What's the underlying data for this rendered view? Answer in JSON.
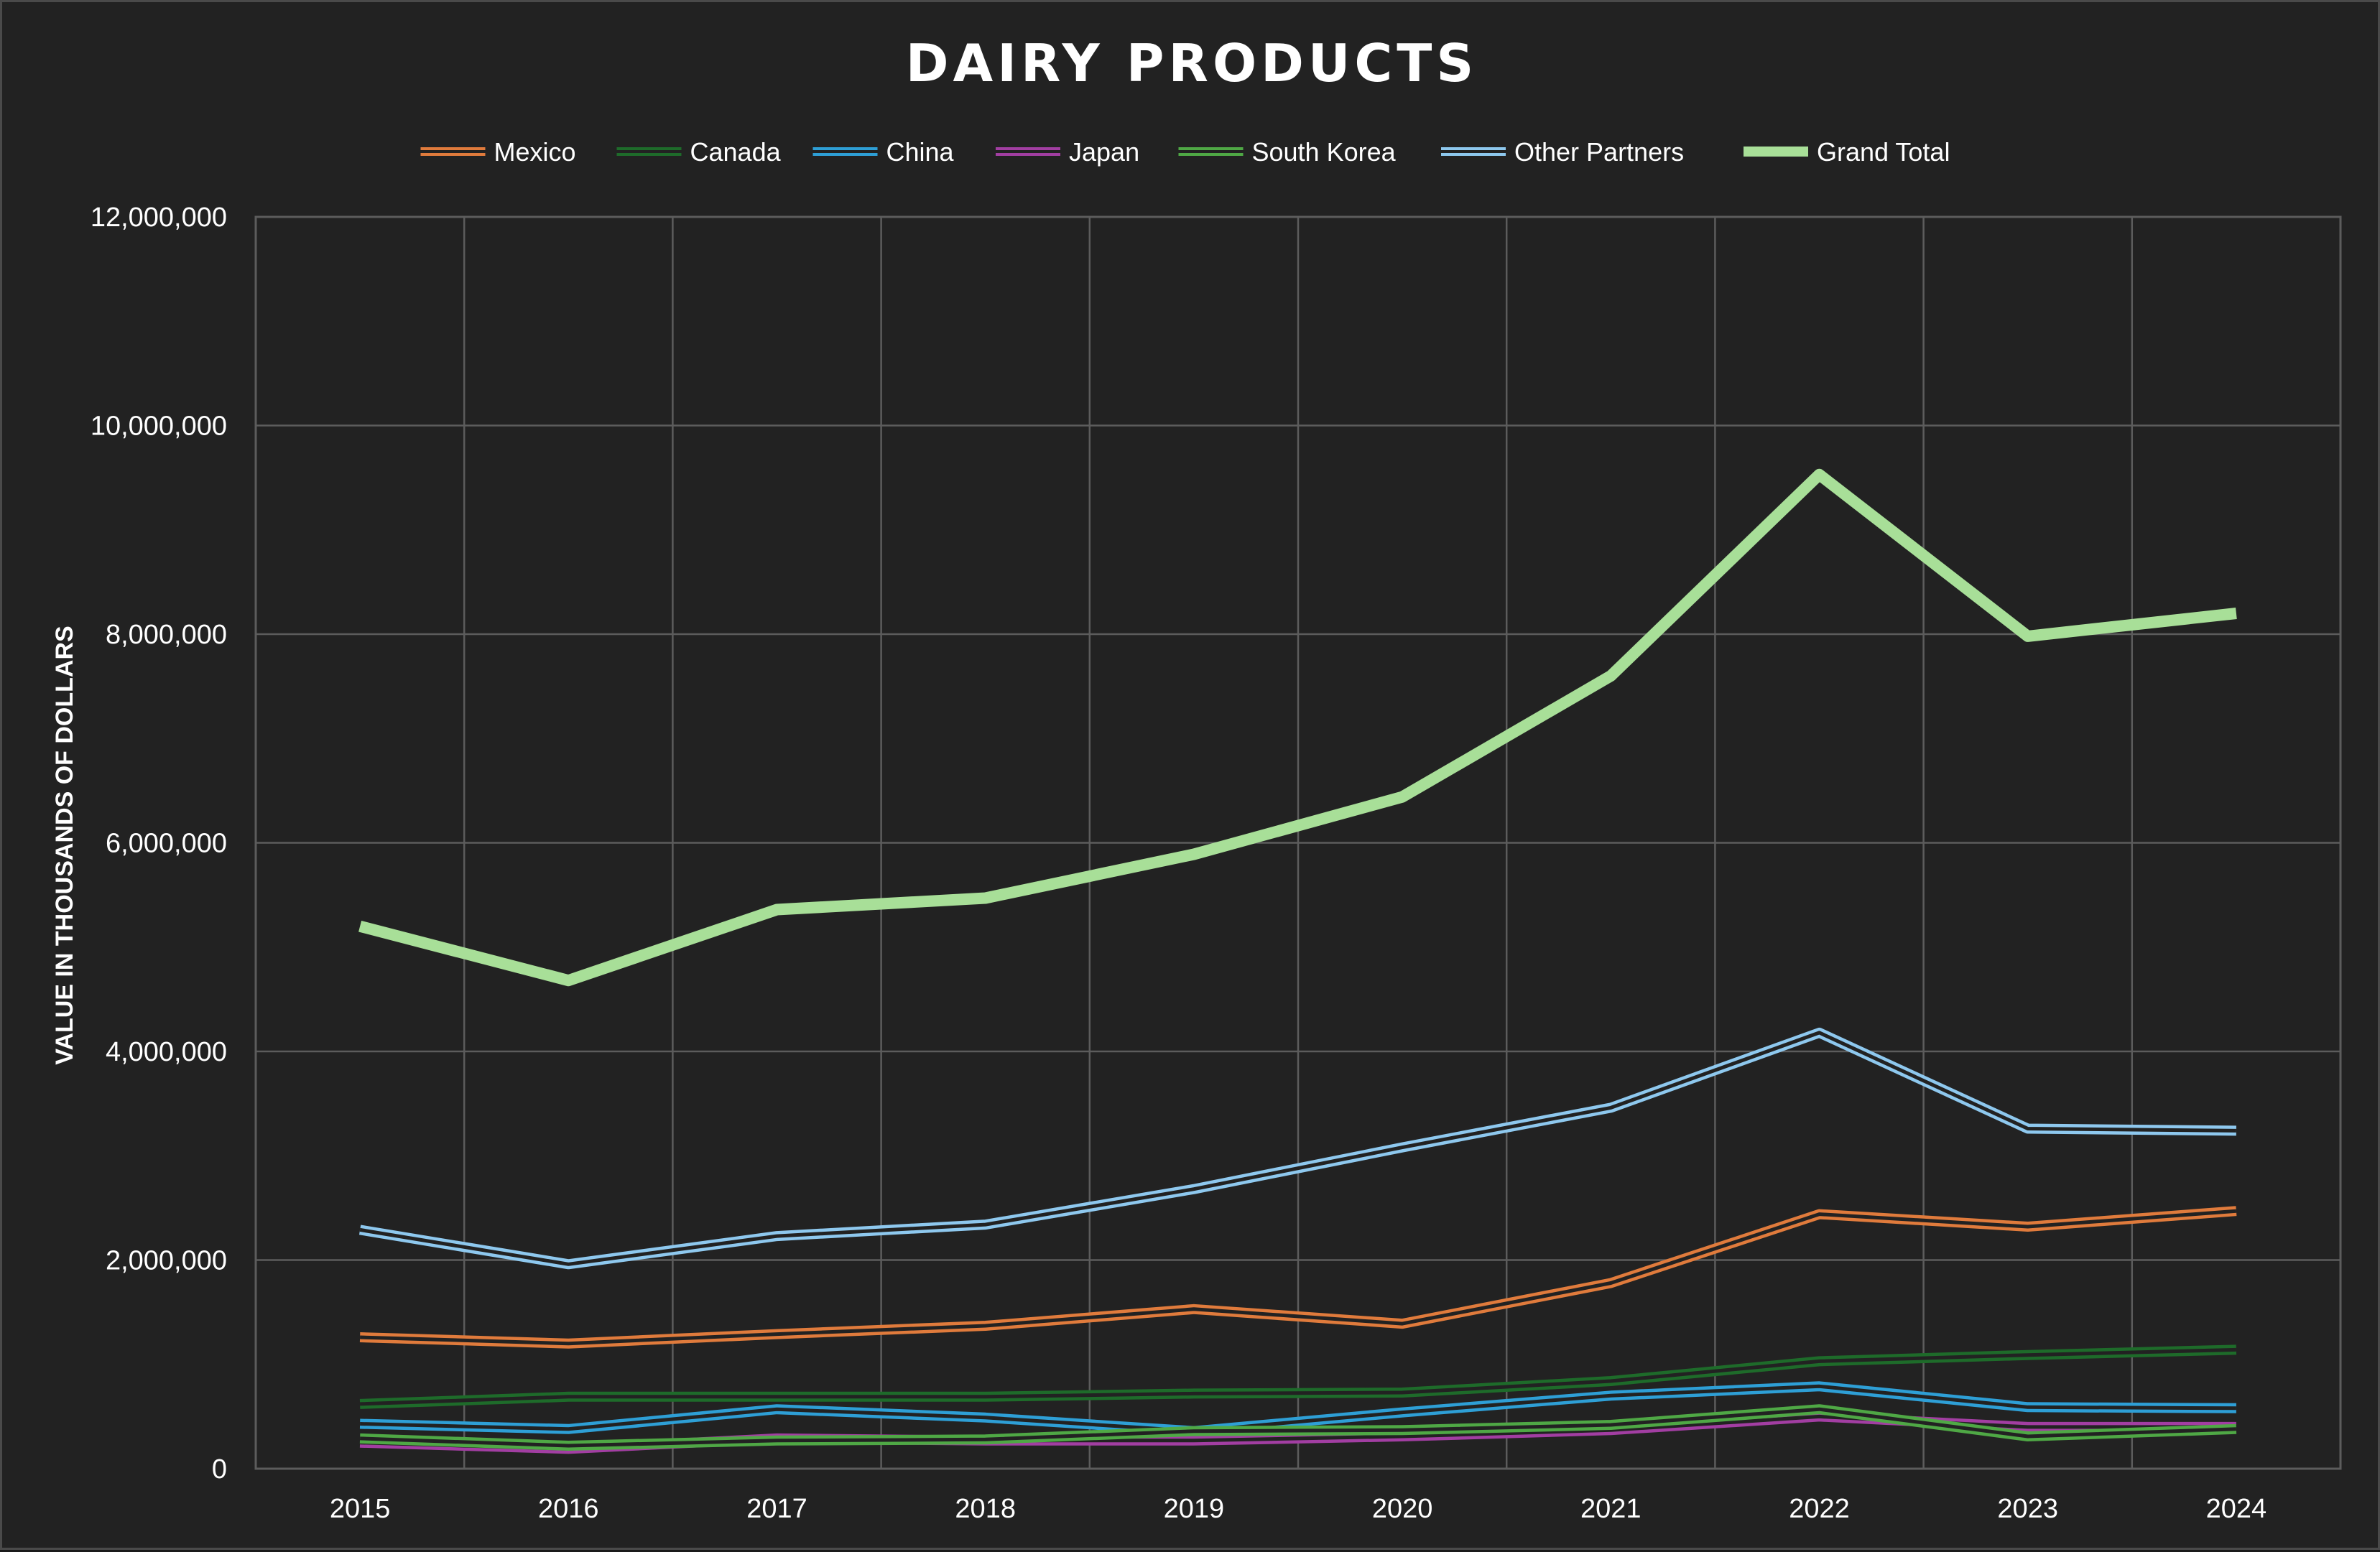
{
  "chart_data": {
    "type": "line",
    "title": "DAIRY PRODUCTS",
    "xlabel": "",
    "ylabel": "VALUE IN THOUSANDS OF DOLLARS",
    "x": [
      "2015",
      "2016",
      "2017",
      "2018",
      "2019",
      "2020",
      "2021",
      "2022",
      "2023",
      "2024"
    ],
    "ylim": [
      0,
      12000000
    ],
    "yticks": [
      0,
      2000000,
      4000000,
      6000000,
      8000000,
      10000000,
      12000000
    ],
    "ytick_labels": [
      "0",
      "2,000,000",
      "4,000,000",
      "6,000,000",
      "8,000,000",
      "10,000,000",
      "12,000,000"
    ],
    "grid": true,
    "legend_position": "top-center",
    "series": [
      {
        "name": "Mexico",
        "color": "#e07b3c",
        "style": "double",
        "values": [
          1260000,
          1200000,
          1290000,
          1370000,
          1530000,
          1390000,
          1780000,
          2440000,
          2320000,
          2470000
        ]
      },
      {
        "name": "Canada",
        "color": "#1e6b2a",
        "style": "double",
        "values": [
          620000,
          690000,
          690000,
          690000,
          720000,
          730000,
          840000,
          1030000,
          1090000,
          1140000
        ]
      },
      {
        "name": "China",
        "color": "#2e9fd6",
        "style": "double",
        "values": [
          430000,
          380000,
          570000,
          490000,
          360000,
          540000,
          700000,
          790000,
          590000,
          580000
        ]
      },
      {
        "name": "Japan",
        "color": "#a23ea2",
        "style": "double",
        "values": [
          250000,
          190000,
          290000,
          270000,
          270000,
          310000,
          370000,
          500000,
          400000,
          400000
        ]
      },
      {
        "name": "South Korea",
        "color": "#4fa845",
        "style": "double",
        "values": [
          290000,
          220000,
          270000,
          280000,
          360000,
          370000,
          420000,
          570000,
          310000,
          380000
        ]
      },
      {
        "name": "Other Partners",
        "color": "#8ec8ee",
        "style": "double",
        "values": [
          2290000,
          1960000,
          2230000,
          2340000,
          2680000,
          3080000,
          3460000,
          4180000,
          3260000,
          3240000
        ]
      },
      {
        "name": "Grand Total",
        "color": "#a8df98",
        "style": "thick",
        "values": [
          5200000,
          4680000,
          5360000,
          5470000,
          5890000,
          6440000,
          7600000,
          9530000,
          7980000,
          8200000
        ]
      }
    ]
  }
}
